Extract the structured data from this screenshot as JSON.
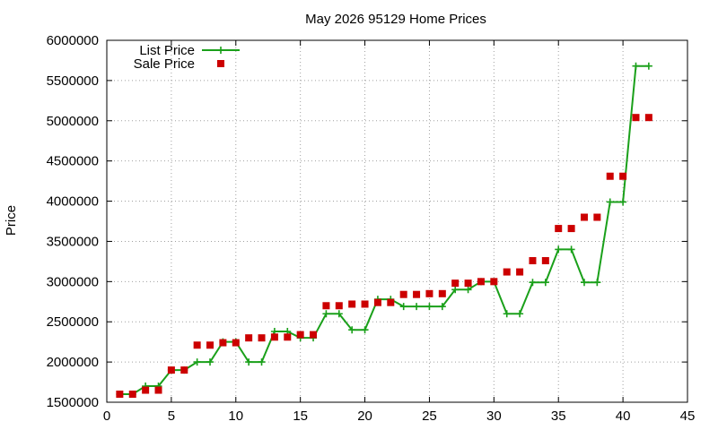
{
  "chart_data": {
    "type": "line",
    "title": "May 2026 95129 Home Prices",
    "xlabel": "",
    "ylabel": "Price",
    "xlim": [
      0,
      45
    ],
    "ylim": [
      1500000,
      6000000
    ],
    "xticks": [
      0,
      5,
      10,
      15,
      20,
      25,
      30,
      35,
      40,
      45
    ],
    "yticks": [
      1500000,
      2000000,
      2500000,
      3000000,
      3500000,
      4000000,
      4500000,
      5000000,
      5500000,
      6000000
    ],
    "grid": true,
    "legend": "top-left",
    "series": [
      {
        "name": "List Price",
        "style": "linespoints",
        "color": "#1aa01a",
        "marker": "plus",
        "x": [
          1,
          2,
          3,
          4,
          5,
          6,
          7,
          8,
          9,
          10,
          11,
          12,
          13,
          14,
          15,
          16,
          17,
          18,
          19,
          20,
          21,
          22,
          23,
          24,
          25,
          26,
          27,
          28,
          29,
          30,
          31,
          32,
          33,
          34,
          35,
          36,
          37,
          38,
          39,
          40,
          41,
          42
        ],
        "y": [
          1600000,
          1600000,
          1700000,
          1700000,
          1900000,
          1900000,
          2000000,
          2000000,
          2250000,
          2250000,
          2000000,
          2000000,
          2380000,
          2380000,
          2300000,
          2300000,
          2600000,
          2600000,
          2400000,
          2400000,
          2780000,
          2780000,
          2690000,
          2690000,
          2690000,
          2690000,
          2900000,
          2900000,
          3000000,
          3000000,
          2600000,
          2600000,
          2990000,
          2990000,
          3400000,
          3400000,
          2990000,
          2990000,
          3990000,
          3990000,
          5680000,
          5680000
        ]
      },
      {
        "name": "Sale Price",
        "style": "points",
        "color": "#cc0000",
        "marker": "square",
        "x": [
          1,
          2,
          3,
          4,
          5,
          6,
          7,
          8,
          9,
          10,
          11,
          12,
          13,
          14,
          15,
          16,
          17,
          18,
          19,
          20,
          21,
          22,
          23,
          24,
          25,
          26,
          27,
          28,
          29,
          30,
          31,
          32,
          33,
          34,
          35,
          36,
          37,
          38,
          39,
          40,
          41,
          42
        ],
        "y": [
          1600000,
          1600000,
          1650000,
          1650000,
          1900000,
          1900000,
          2210000,
          2210000,
          2240000,
          2240000,
          2300000,
          2300000,
          2310000,
          2310000,
          2340000,
          2340000,
          2700000,
          2700000,
          2720000,
          2720000,
          2740000,
          2740000,
          2840000,
          2840000,
          2850000,
          2850000,
          2980000,
          2980000,
          3000000,
          3000000,
          3120000,
          3120000,
          3260000,
          3260000,
          3660000,
          3660000,
          3800000,
          3800000,
          4310000,
          4310000,
          5040000,
          5040000
        ]
      }
    ]
  }
}
